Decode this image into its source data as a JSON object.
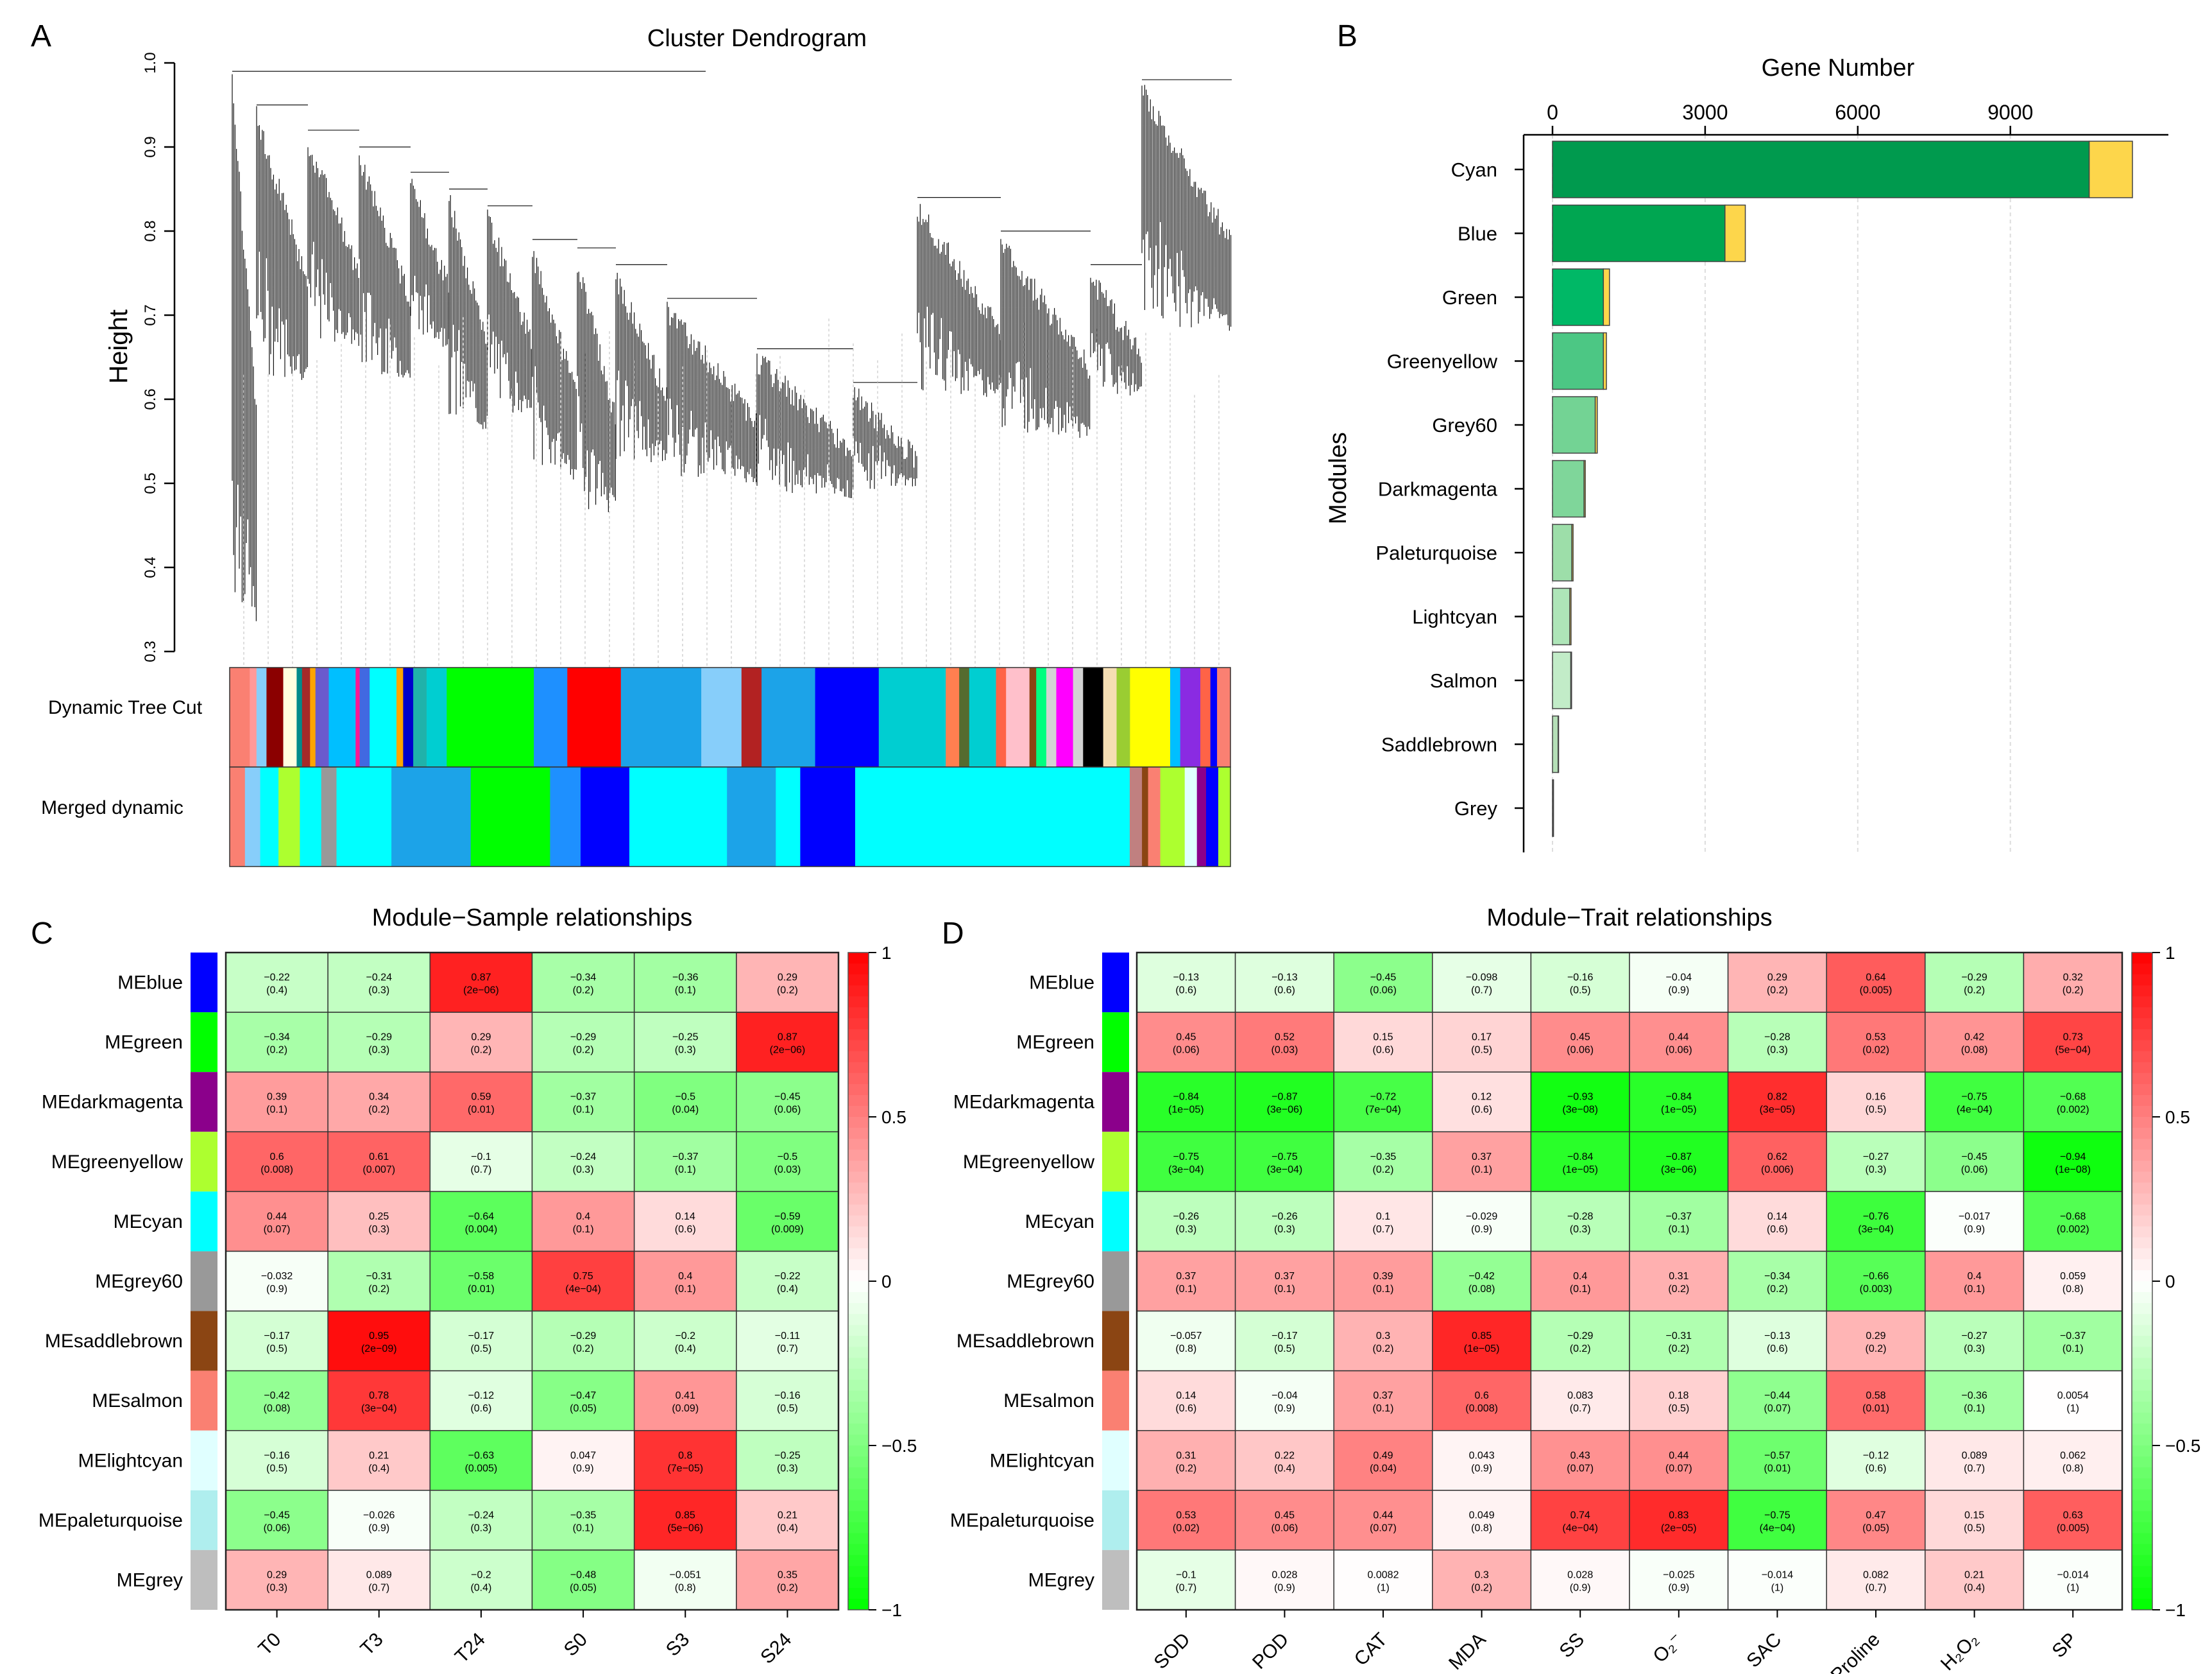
{
  "panels": {
    "A": {
      "label": "A",
      "title": "Cluster Dendrogram",
      "ylabel": "Height",
      "yticks": [
        "0.3",
        "0.4",
        "0.5",
        "0.6",
        "0.7",
        "0.8",
        "0.9",
        "1.0"
      ],
      "track_labels": [
        "Dynamic Tree Cut",
        "Merged dynamic"
      ]
    },
    "B": {
      "label": "B"
    },
    "C": {
      "label": "C"
    },
    "D": {
      "label": "D"
    }
  },
  "chart_data": [
    {
      "type": "bar",
      "panel": "B",
      "title": "Gene Number",
      "xlabel": "",
      "ylabel": "Modules",
      "xlim": [
        0,
        12000
      ],
      "xticks": [
        "0",
        "3000",
        "6000",
        "9000"
      ],
      "categories": [
        "Cyan",
        "Blue",
        "Green",
        "Greenyellow",
        "Grey60",
        "Darkmagenta",
        "Paleturquoise",
        "Lightcyan",
        "Salmon",
        "Saddlebrown",
        "Grey"
      ],
      "series": [
        {
          "name": "main",
          "values": [
            10550,
            3390,
            1000,
            1000,
            840,
            620,
            380,
            340,
            360,
            110,
            15
          ]
        },
        {
          "name": "extra",
          "values": [
            850,
            400,
            120,
            60,
            40,
            25,
            25,
            25,
            15,
            10,
            5
          ]
        }
      ],
      "colors": {
        "main": [
          "#009a4e",
          "#00a651",
          "#00b866",
          "#4cc784",
          "#73d394",
          "#7fd69a",
          "#9ddea9",
          "#aee5b8",
          "#c2ecc8",
          "#b5dfb7",
          "#cccccc"
        ],
        "extra": "#fdd64b"
      }
    },
    {
      "type": "heatmap",
      "panel": "C",
      "title": "Module−Sample relationships",
      "rows": [
        "MEblue",
        "MEgreen",
        "MEdarkmagenta",
        "MEgreenyellow",
        "MEcyan",
        "MEgrey60",
        "MEsaddlebrown",
        "MEsalmon",
        "MElightcyan",
        "MEpaleturquoise",
        "MEgrey"
      ],
      "row_colors": [
        "#0000ff",
        "#00ff00",
        "#8b008b",
        "#adff2f",
        "#00ffff",
        "#999999",
        "#8b4513",
        "#fa8072",
        "#e0ffff",
        "#afeeee",
        "#bebebe"
      ],
      "cols": [
        "T0",
        "T3",
        "T24",
        "S0",
        "S3",
        "S24"
      ],
      "values": [
        [
          -0.22,
          -0.24,
          0.87,
          -0.34,
          -0.36,
          0.29
        ],
        [
          -0.34,
          -0.29,
          0.29,
          -0.29,
          -0.25,
          0.87
        ],
        [
          0.39,
          0.34,
          0.59,
          -0.37,
          -0.5,
          -0.45
        ],
        [
          0.6,
          0.61,
          -0.1,
          -0.24,
          -0.37,
          -0.5
        ],
        [
          0.44,
          0.25,
          -0.64,
          0.4,
          0.14,
          -0.59
        ],
        [
          -0.032,
          -0.31,
          -0.58,
          0.75,
          0.4,
          -0.22
        ],
        [
          -0.17,
          0.95,
          -0.17,
          -0.29,
          -0.2,
          -0.11
        ],
        [
          -0.42,
          0.78,
          -0.12,
          -0.47,
          0.41,
          -0.16
        ],
        [
          -0.16,
          0.21,
          -0.63,
          0.047,
          0.8,
          -0.25
        ],
        [
          -0.45,
          -0.026,
          -0.24,
          -0.35,
          0.85,
          0.21
        ],
        [
          0.29,
          0.089,
          -0.2,
          -0.48,
          -0.051,
          0.35
        ]
      ],
      "value_labels": [
        [
          "−0.22",
          "−0.24",
          "0.87",
          "−0.34",
          "−0.36",
          "0.29"
        ],
        [
          "−0.34",
          "−0.29",
          "0.29",
          "−0.29",
          "−0.25",
          "0.87"
        ],
        [
          "0.39",
          "0.34",
          "0.59",
          "−0.37",
          "−0.5",
          "−0.45"
        ],
        [
          "0.6",
          "0.61",
          "−0.1",
          "−0.24",
          "−0.37",
          "−0.5"
        ],
        [
          "0.44",
          "0.25",
          "−0.64",
          "0.4",
          "0.14",
          "−0.59"
        ],
        [
          "−0.032",
          "−0.31",
          "−0.58",
          "0.75",
          "0.4",
          "−0.22"
        ],
        [
          "−0.17",
          "0.95",
          "−0.17",
          "−0.29",
          "−0.2",
          "−0.11"
        ],
        [
          "−0.42",
          "0.78",
          "−0.12",
          "−0.47",
          "0.41",
          "−0.16"
        ],
        [
          "−0.16",
          "0.21",
          "−0.63",
          "0.047",
          "0.8",
          "−0.25"
        ],
        [
          "−0.45",
          "−0.026",
          "−0.24",
          "−0.35",
          "0.85",
          "0.21"
        ],
        [
          "0.29",
          "0.089",
          "−0.2",
          "−0.48",
          "−0.051",
          "0.35"
        ]
      ],
      "pvalues": [
        [
          "(0.4)",
          "(0.3)",
          "(2e−06)",
          "(0.2)",
          "(0.1)",
          "(0.2)"
        ],
        [
          "(0.2)",
          "(0.3)",
          "(0.2)",
          "(0.2)",
          "(0.3)",
          "(2e−06)"
        ],
        [
          "(0.1)",
          "(0.2)",
          "(0.01)",
          "(0.1)",
          "(0.04)",
          "(0.06)"
        ],
        [
          "(0.008)",
          "(0.007)",
          "(0.7)",
          "(0.3)",
          "(0.1)",
          "(0.03)"
        ],
        [
          "(0.07)",
          "(0.3)",
          "(0.004)",
          "(0.1)",
          "(0.6)",
          "(0.009)"
        ],
        [
          "(0.9)",
          "(0.2)",
          "(0.01)",
          "(4e−04)",
          "(0.1)",
          "(0.4)"
        ],
        [
          "(0.5)",
          "(2e−09)",
          "(0.5)",
          "(0.2)",
          "(0.4)",
          "(0.7)"
        ],
        [
          "(0.08)",
          "(3e−04)",
          "(0.6)",
          "(0.05)",
          "(0.09)",
          "(0.5)"
        ],
        [
          "(0.5)",
          "(0.4)",
          "(0.005)",
          "(0.9)",
          "(7e−05)",
          "(0.3)"
        ],
        [
          "(0.06)",
          "(0.9)",
          "(0.3)",
          "(0.1)",
          "(5e−06)",
          "(0.4)"
        ],
        [
          "(0.3)",
          "(0.7)",
          "(0.4)",
          "(0.05)",
          "(0.8)",
          "(0.2)"
        ]
      ],
      "scale": {
        "min": -1,
        "max": 1,
        "ticks": [
          "1",
          "0.5",
          "0",
          "−0.5",
          "−1"
        ]
      }
    },
    {
      "type": "heatmap",
      "panel": "D",
      "title": "Module−Trait relationships",
      "rows": [
        "MEblue",
        "MEgreen",
        "MEdarkmagenta",
        "MEgreenyellow",
        "MEcyan",
        "MEgrey60",
        "MEsaddlebrown",
        "MEsalmon",
        "MElightcyan",
        "MEpaleturquoise",
        "MEgrey"
      ],
      "row_colors": [
        "#0000ff",
        "#00ff00",
        "#8b008b",
        "#adff2f",
        "#00ffff",
        "#999999",
        "#8b4513",
        "#fa8072",
        "#e0ffff",
        "#afeeee",
        "#bebebe"
      ],
      "cols": [
        "SOD",
        "POD",
        "CAT",
        "MDA",
        "SS",
        "O₂⁻",
        "SAC",
        "Proline",
        "H₂O₂",
        "SP"
      ],
      "values": [
        [
          -0.13,
          -0.13,
          -0.45,
          -0.098,
          -0.16,
          -0.04,
          0.29,
          0.64,
          -0.29,
          0.32
        ],
        [
          0.45,
          0.52,
          0.15,
          0.17,
          0.45,
          0.44,
          -0.28,
          0.53,
          0.42,
          0.73
        ],
        [
          -0.84,
          -0.87,
          -0.72,
          0.12,
          -0.93,
          -0.84,
          0.82,
          0.16,
          -0.75,
          -0.68
        ],
        [
          -0.75,
          -0.75,
          -0.35,
          0.37,
          -0.84,
          -0.87,
          0.62,
          -0.27,
          -0.45,
          -0.94
        ],
        [
          -0.26,
          -0.26,
          0.1,
          -0.029,
          -0.28,
          -0.37,
          0.14,
          -0.76,
          -0.017,
          -0.68
        ],
        [
          0.37,
          0.37,
          0.39,
          -0.42,
          0.4,
          0.31,
          -0.34,
          -0.66,
          0.4,
          0.059
        ],
        [
          -0.057,
          -0.17,
          0.3,
          0.85,
          -0.29,
          -0.31,
          -0.13,
          0.29,
          -0.27,
          -0.37
        ],
        [
          0.14,
          -0.04,
          0.37,
          0.6,
          0.083,
          0.18,
          -0.44,
          0.58,
          -0.36,
          0.0054
        ],
        [
          0.31,
          0.22,
          0.49,
          0.043,
          0.43,
          0.44,
          -0.57,
          -0.12,
          0.089,
          0.062
        ],
        [
          0.53,
          0.45,
          0.44,
          0.049,
          0.74,
          0.83,
          -0.75,
          0.47,
          0.15,
          0.63
        ],
        [
          -0.1,
          0.028,
          0.0082,
          0.3,
          0.028,
          -0.025,
          -0.014,
          0.082,
          0.21,
          -0.014
        ]
      ],
      "value_labels": [
        [
          "−0.13",
          "−0.13",
          "−0.45",
          "−0.098",
          "−0.16",
          "−0.04",
          "0.29",
          "0.64",
          "−0.29",
          "0.32"
        ],
        [
          "0.45",
          "0.52",
          "0.15",
          "0.17",
          "0.45",
          "0.44",
          "−0.28",
          "0.53",
          "0.42",
          "0.73"
        ],
        [
          "−0.84",
          "−0.87",
          "−0.72",
          "0.12",
          "−0.93",
          "−0.84",
          "0.82",
          "0.16",
          "−0.75",
          "−0.68"
        ],
        [
          "−0.75",
          "−0.75",
          "−0.35",
          "0.37",
          "−0.84",
          "−0.87",
          "0.62",
          "−0.27",
          "−0.45",
          "−0.94"
        ],
        [
          "−0.26",
          "−0.26",
          "0.1",
          "−0.029",
          "−0.28",
          "−0.37",
          "0.14",
          "−0.76",
          "−0.017",
          "−0.68"
        ],
        [
          "0.37",
          "0.37",
          "0.39",
          "−0.42",
          "0.4",
          "0.31",
          "−0.34",
          "−0.66",
          "0.4",
          "0.059"
        ],
        [
          "−0.057",
          "−0.17",
          "0.3",
          "0.85",
          "−0.29",
          "−0.31",
          "−0.13",
          "0.29",
          "−0.27",
          "−0.37"
        ],
        [
          "0.14",
          "−0.04",
          "0.37",
          "0.6",
          "0.083",
          "0.18",
          "−0.44",
          "0.58",
          "−0.36",
          "0.0054"
        ],
        [
          "0.31",
          "0.22",
          "0.49",
          "0.043",
          "0.43",
          "0.44",
          "−0.57",
          "−0.12",
          "0.089",
          "0.062"
        ],
        [
          "0.53",
          "0.45",
          "0.44",
          "0.049",
          "0.74",
          "0.83",
          "−0.75",
          "0.47",
          "0.15",
          "0.63"
        ],
        [
          "−0.1",
          "0.028",
          "0.0082",
          "0.3",
          "0.028",
          "−0.025",
          "−0.014",
          "0.082",
          "0.21",
          "−0.014"
        ]
      ],
      "pvalues": [
        [
          "(0.6)",
          "(0.6)",
          "(0.06)",
          "(0.7)",
          "(0.5)",
          "(0.9)",
          "(0.2)",
          "(0.005)",
          "(0.2)",
          "(0.2)"
        ],
        [
          "(0.06)",
          "(0.03)",
          "(0.6)",
          "(0.5)",
          "(0.06)",
          "(0.06)",
          "(0.3)",
          "(0.02)",
          "(0.08)",
          "(5e−04)"
        ],
        [
          "(1e−05)",
          "(3e−06)",
          "(7e−04)",
          "(0.6)",
          "(3e−08)",
          "(1e−05)",
          "(3e−05)",
          "(0.5)",
          "(4e−04)",
          "(0.002)"
        ],
        [
          "(3e−04)",
          "(3e−04)",
          "(0.2)",
          "(0.1)",
          "(1e−05)",
          "(3e−06)",
          "(0.006)",
          "(0.3)",
          "(0.06)",
          "(1e−08)"
        ],
        [
          "(0.3)",
          "(0.3)",
          "(0.7)",
          "(0.9)",
          "(0.3)",
          "(0.1)",
          "(0.6)",
          "(3e−04)",
          "(0.9)",
          "(0.002)"
        ],
        [
          "(0.1)",
          "(0.1)",
          "(0.1)",
          "(0.08)",
          "(0.1)",
          "(0.2)",
          "(0.2)",
          "(0.003)",
          "(0.1)",
          "(0.8)"
        ],
        [
          "(0.8)",
          "(0.5)",
          "(0.2)",
          "(1e−05)",
          "(0.2)",
          "(0.2)",
          "(0.6)",
          "(0.2)",
          "(0.3)",
          "(0.1)"
        ],
        [
          "(0.6)",
          "(0.9)",
          "(0.1)",
          "(0.008)",
          "(0.7)",
          "(0.5)",
          "(0.07)",
          "(0.01)",
          "(0.1)",
          "(1)"
        ],
        [
          "(0.2)",
          "(0.4)",
          "(0.04)",
          "(0.9)",
          "(0.07)",
          "(0.07)",
          "(0.01)",
          "(0.6)",
          "(0.7)",
          "(0.8)"
        ],
        [
          "(0.02)",
          "(0.06)",
          "(0.07)",
          "(0.8)",
          "(4e−04)",
          "(2e−05)",
          "(4e−04)",
          "(0.05)",
          "(0.5)",
          "(0.005)"
        ],
        [
          "(0.7)",
          "(0.9)",
          "(1)",
          "(0.2)",
          "(0.9)",
          "(0.9)",
          "(1)",
          "(0.7)",
          "(0.4)",
          "(1)"
        ]
      ],
      "scale": {
        "min": -1,
        "max": 1,
        "ticks": [
          "1",
          "0.5",
          "0",
          "−0.5",
          "−1"
        ]
      }
    }
  ]
}
